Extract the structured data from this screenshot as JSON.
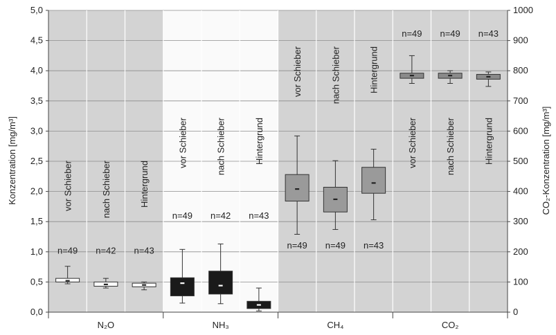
{
  "chart_data": {
    "type": "boxplot",
    "ylabel_left": "Konzentration [mg/m³]",
    "ylabel_right": "CO₂-Konzentration [mg/m³]",
    "y_left": {
      "min": 0,
      "max": 5,
      "ticks": [
        "0,0",
        "0,5",
        "1,0",
        "1,5",
        "2,0",
        "2,5",
        "3,0",
        "3,5",
        "4,0",
        "4,5",
        "5,0"
      ]
    },
    "y_right": {
      "min": 0,
      "max": 1000,
      "ticks": [
        "0",
        "100",
        "200",
        "300",
        "400",
        "500",
        "600",
        "700",
        "800",
        "900",
        "1000"
      ]
    },
    "grid": true,
    "groups": [
      {
        "name": "N₂O",
        "background": "#d3d3d3",
        "box_color": "#ffffff",
        "median_color": "#222222",
        "axis": "left",
        "boxes": [
          {
            "label": "vor Schieber",
            "n_label": "n=49",
            "whisker_low": 0.47,
            "q1": 0.5,
            "median": 0.52,
            "q3": 0.56,
            "whisker_high": 0.76
          },
          {
            "label": "nach Schieber",
            "n_label": "n=42",
            "whisker_low": 0.4,
            "q1": 0.43,
            "median": 0.46,
            "q3": 0.5,
            "whisker_high": 0.56
          },
          {
            "label": "Hintergrund",
            "n_label": "n=43",
            "whisker_low": 0.37,
            "q1": 0.42,
            "median": 0.45,
            "q3": 0.48,
            "whisker_high": 0.5
          }
        ]
      },
      {
        "name": "NH₃",
        "background": "#fafafa",
        "box_color": "#1a1a1a",
        "median_color": "#ffffff",
        "axis": "left",
        "boxes": [
          {
            "label": "vor Schieber",
            "n_label": "n=49",
            "whisker_low": 0.15,
            "q1": 0.27,
            "median": 0.48,
            "q3": 0.57,
            "whisker_high": 1.04
          },
          {
            "label": "nach Schieber",
            "n_label": "n=42",
            "whisker_low": 0.14,
            "q1": 0.3,
            "median": 0.44,
            "q3": 0.68,
            "whisker_high": 1.13
          },
          {
            "label": "Hintergrund",
            "n_label": "n=43",
            "whisker_low": 0.02,
            "q1": 0.06,
            "median": 0.12,
            "q3": 0.18,
            "whisker_high": 0.4
          }
        ]
      },
      {
        "name": "CH₄",
        "background": "#d3d3d3",
        "box_color": "#9a9a9a",
        "median_color": "#222222",
        "axis": "left",
        "boxes": [
          {
            "label": "vor Schieber",
            "n_label": "n=49",
            "whisker_low": 1.29,
            "q1": 1.84,
            "median": 2.04,
            "q3": 2.28,
            "whisker_high": 2.92
          },
          {
            "label": "nach Schieber",
            "n_label": "n=49",
            "whisker_low": 1.37,
            "q1": 1.66,
            "median": 1.87,
            "q3": 2.07,
            "whisker_high": 2.51
          },
          {
            "label": "Hintergrund",
            "n_label": "n=43",
            "whisker_low": 1.53,
            "q1": 1.97,
            "median": 2.14,
            "q3": 2.4,
            "whisker_high": 2.7
          }
        ]
      },
      {
        "name": "CO₂",
        "background": "#d3d3d3",
        "box_color": "#8a8a8a",
        "median_color": "#222222",
        "axis": "right",
        "boxes": [
          {
            "label": "vor Schieber",
            "n_label": "n=49",
            "whisker_low": 758,
            "q1": 775,
            "median": 784,
            "q3": 792,
            "whisker_high": 850
          },
          {
            "label": "nach Schieber",
            "n_label": "n=49",
            "whisker_low": 758,
            "q1": 775,
            "median": 784,
            "q3": 792,
            "whisker_high": 800
          },
          {
            "label": "Hintergrund",
            "n_label": "n=43",
            "whisker_low": 748,
            "q1": 772,
            "median": 780,
            "q3": 788,
            "whisker_high": 796
          }
        ]
      }
    ]
  }
}
